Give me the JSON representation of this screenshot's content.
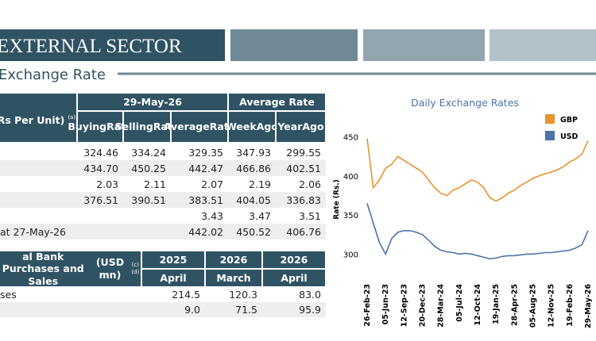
{
  "header": {
    "title": "EXTERNAL SECTOR",
    "subtitle": "Exchange Rate"
  },
  "rates_table": {
    "stub": "(Rs Per Unit)",
    "stub_note": "(a)",
    "group_1": "29-May-26",
    "group_2": "Average Rate",
    "columns": [
      [
        "Buying",
        "Rate"
      ],
      [
        "Selling",
        "Rate"
      ],
      [
        "Average",
        "Rate"
      ],
      [
        "Week",
        "Ago"
      ],
      [
        "Year",
        "Ago"
      ]
    ],
    "rows": [
      [
        null,
        "324.46",
        "334.24",
        "329.35",
        "347.93",
        "299.55"
      ],
      [
        null,
        "434.70",
        "450.25",
        "442.47",
        "466.86",
        "402.51"
      ],
      [
        null,
        "2.03",
        "2.11",
        "2.07",
        "2.19",
        "2.06"
      ],
      [
        null,
        "376.51",
        "390.51",
        "383.51",
        "404.05",
        "336.83"
      ],
      [
        null,
        null,
        null,
        "3.43",
        "3.47",
        "3.51"
      ],
      [
        "at 27-May-26",
        null,
        null,
        "442.02",
        "450.52",
        "406.76"
      ]
    ]
  },
  "bank_table": {
    "stub": [
      "al Bank Purchases and Sales",
      "(USD mn)"
    ],
    "stub_note": "(c) (d)",
    "columns": [
      [
        "2025",
        "April"
      ],
      [
        "2026",
        "March"
      ],
      [
        "2026",
        "April"
      ]
    ],
    "rows": [
      [
        "ses",
        "214.5",
        "120.3",
        "83.0"
      ],
      [
        null,
        "9.0",
        "71.5",
        "95.9"
      ]
    ]
  },
  "chart_data": {
    "type": "line",
    "title": "Daily Exchange Rates",
    "y_label": "Rate (Rs.)",
    "categories": [
      "26-Feb-23",
      null,
      null,
      "05-Jun-23",
      null,
      null,
      "12-Sep-23",
      null,
      null,
      "20-Dec-23",
      null,
      null,
      "28-Mar-24",
      null,
      null,
      "05-Jul-24",
      null,
      null,
      "12-Oct-24",
      null,
      null,
      "19-Jan-25",
      null,
      null,
      "28-Apr-25",
      null,
      null,
      "05-Aug-25",
      null,
      null,
      "12-Nov-25",
      null,
      null,
      "19-Feb-26",
      null,
      null,
      "29-May-26"
    ],
    "ylim": [
      270,
      470
    ],
    "yticks": [
      300,
      350,
      400,
      450
    ],
    "legend": "top-right",
    "series": [
      {
        "name": "GBP",
        "color": "#e8942e",
        "values": [
          448,
          385,
          395,
          410,
          415,
          425,
          420,
          415,
          410,
          405,
          395,
          385,
          378,
          375,
          382,
          385,
          390,
          395,
          392,
          385,
          372,
          368,
          372,
          378,
          382,
          388,
          392,
          397,
          400,
          403,
          405,
          408,
          412,
          418,
          422,
          428,
          445
        ]
      },
      {
        "name": "USD",
        "color": "#4a73a8",
        "values": [
          365,
          340,
          315,
          300,
          320,
          328,
          330,
          330,
          328,
          325,
          318,
          310,
          305,
          303,
          302,
          300,
          301,
          300,
          298,
          296,
          294,
          295,
          297,
          298,
          298,
          299,
          300,
          300,
          301,
          302,
          302,
          303,
          304,
          305,
          308,
          312,
          330
        ]
      }
    ]
  }
}
